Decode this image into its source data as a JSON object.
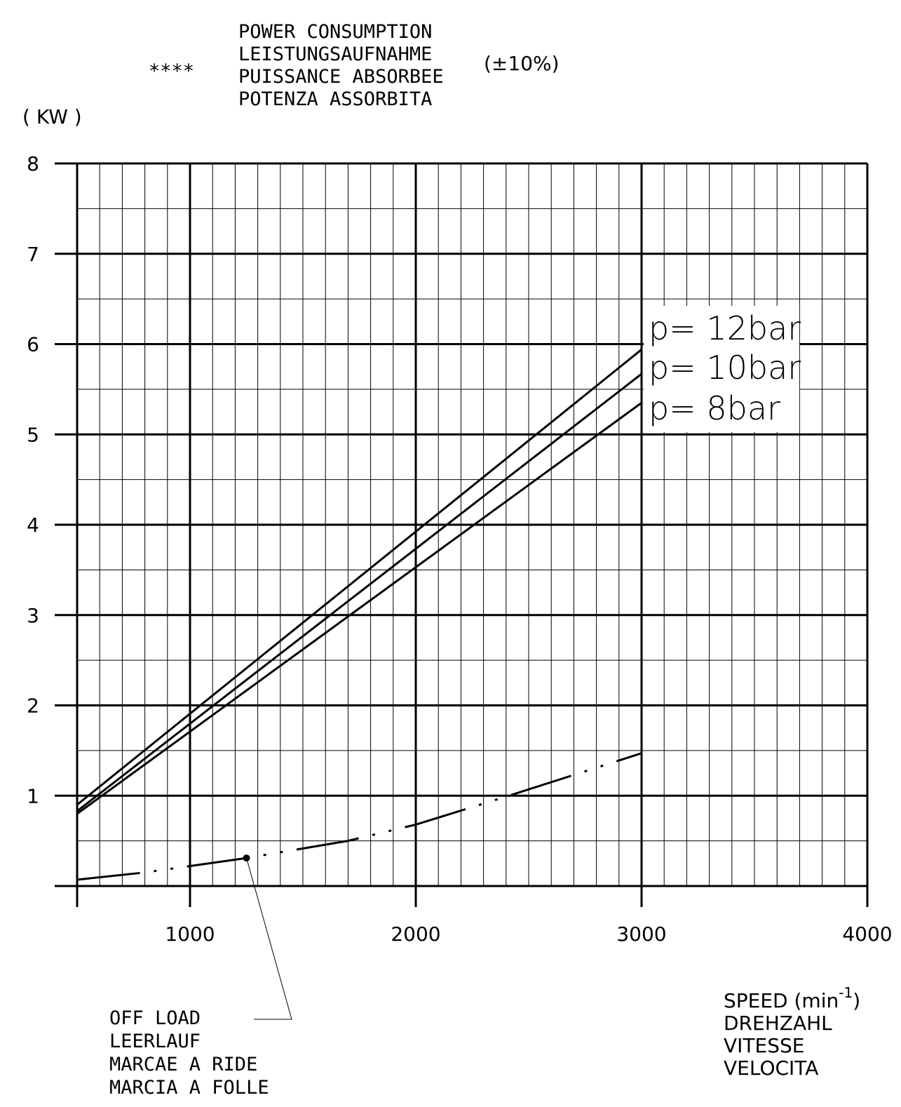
{
  "header": {
    "title_lines": [
      "POWER CONSUMPTION",
      "LEISTUNGSAUFNAHME",
      "PUISSANCE ABSORBEE",
      "POTENZA ASSORBITA"
    ],
    "marker": "****",
    "tolerance": "(±10%)",
    "y_unit": "( KW )"
  },
  "footer": {
    "offload_lines": [
      "OFF LOAD",
      "LEERLAUF",
      "MARCAE A RIDE",
      "MARCIA A FOLLE"
    ],
    "speed_lines": [
      "DREHZAHL",
      "VITESSE",
      "VELOCITA"
    ],
    "speed_title": "SPEED (min",
    "speed_exp": "-1",
    "speed_close": ")"
  },
  "chart_data": {
    "type": "line",
    "xlim": [
      500,
      4000
    ],
    "ylim": [
      0,
      8
    ],
    "x_ticks": [
      1000,
      2000,
      3000,
      4000
    ],
    "y_ticks": [
      1,
      2,
      3,
      4,
      5,
      6,
      7,
      8
    ],
    "grid": true,
    "series": [
      {
        "name": "p= 12bar",
        "x": [
          500,
          3000
        ],
        "y": [
          0.9,
          5.94
        ]
      },
      {
        "name": "p= 10bar",
        "x": [
          500,
          3000
        ],
        "y": [
          0.83,
          5.67
        ]
      },
      {
        "name": "p= 8bar",
        "x": [
          500,
          3000
        ],
        "y": [
          0.8,
          5.35
        ]
      },
      {
        "name": "OFF LOAD",
        "style": "dashed",
        "x": [
          500,
          800,
          1250,
          1700,
          2000,
          2400,
          3000
        ],
        "y": [
          0.07,
          0.15,
          0.31,
          0.5,
          0.68,
          0.99,
          1.47
        ]
      }
    ],
    "offload_marker": {
      "x": 1250,
      "y": 0.31
    }
  }
}
